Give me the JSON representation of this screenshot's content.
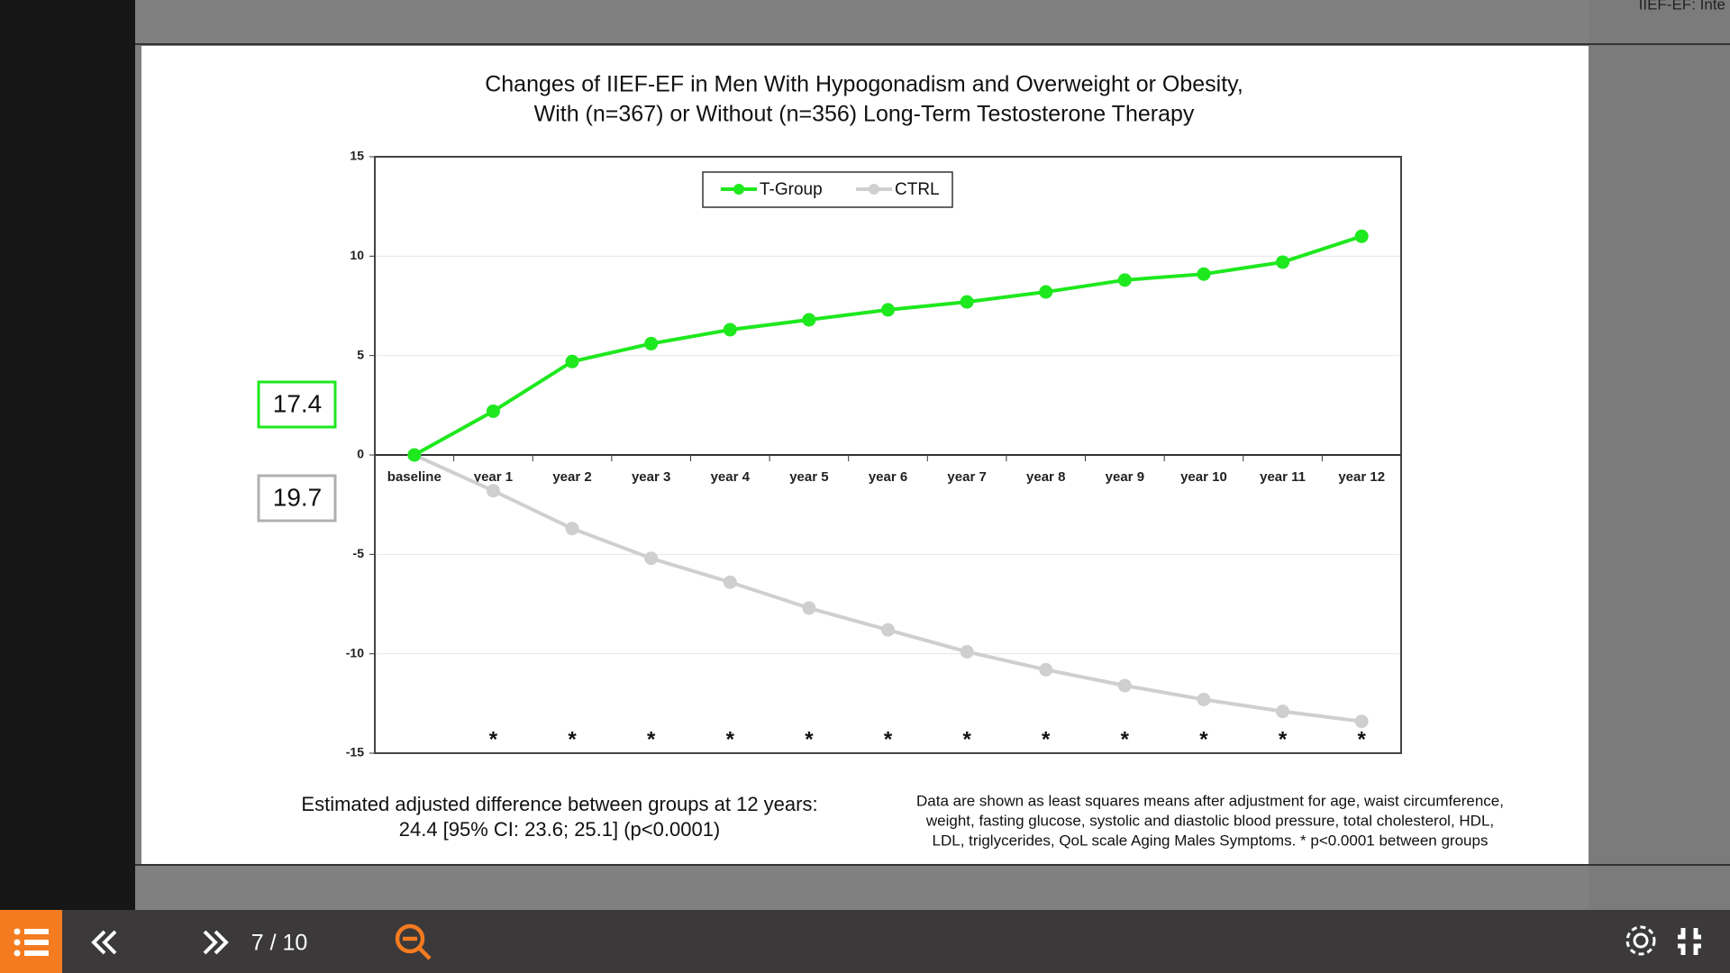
{
  "viewer": {
    "header_tab": "IIEF-EF: Inte",
    "page_indicator": "7 / 10"
  },
  "chart_data": {
    "type": "line",
    "title": [
      "Changes of IIEF-EF in Men With Hypogonadism and Overweight or Obesity,",
      "With (n=367) or Without (n=356) Long-Term Testosterone Therapy"
    ],
    "categories": [
      "baseline",
      "year 1",
      "year 2",
      "year 3",
      "year 4",
      "year 5",
      "year 6",
      "year 7",
      "year 8",
      "year 9",
      "year 10",
      "year 11",
      "year 12"
    ],
    "series": [
      {
        "name": "T-Group",
        "color": "#1ee81e",
        "values": [
          0,
          2.2,
          4.7,
          5.6,
          6.3,
          6.8,
          7.3,
          7.7,
          8.2,
          8.8,
          9.1,
          9.7,
          11.0
        ]
      },
      {
        "name": "CTRL",
        "color": "#cfcfcf",
        "values": [
          0,
          -1.8,
          -3.7,
          -5.2,
          -6.4,
          -7.7,
          -8.8,
          -9.9,
          -10.8,
          -11.6,
          -12.3,
          -12.9,
          -13.4
        ]
      }
    ],
    "ylim": [
      -15,
      15
    ],
    "yticks": [
      -15,
      -10,
      -5,
      0,
      5,
      10,
      15
    ],
    "grid": true,
    "significance": [
      null,
      "*",
      "*",
      "*",
      "*",
      "*",
      "*",
      "*",
      "*",
      "*",
      "*",
      "*",
      "*"
    ],
    "annotations": [
      {
        "text": "17.4",
        "color": "#1ee81e"
      },
      {
        "text": "19.7",
        "color": "#b0b0b0"
      }
    ],
    "footnote_left": [
      "Estimated adjusted difference between groups at 12 years:",
      "24.4 [95% CI: 23.6; 25.1] (p<0.0001)"
    ],
    "footnote_right": [
      "Data are shown as least squares means after adjustment for age, waist circumference,",
      "weight, fasting glucose, systolic and diastolic blood pressure, total cholesterol, HDL,",
      "LDL, triglycerides, QoL scale Aging Males Symptoms. * p<0.0001 between groups"
    ]
  }
}
